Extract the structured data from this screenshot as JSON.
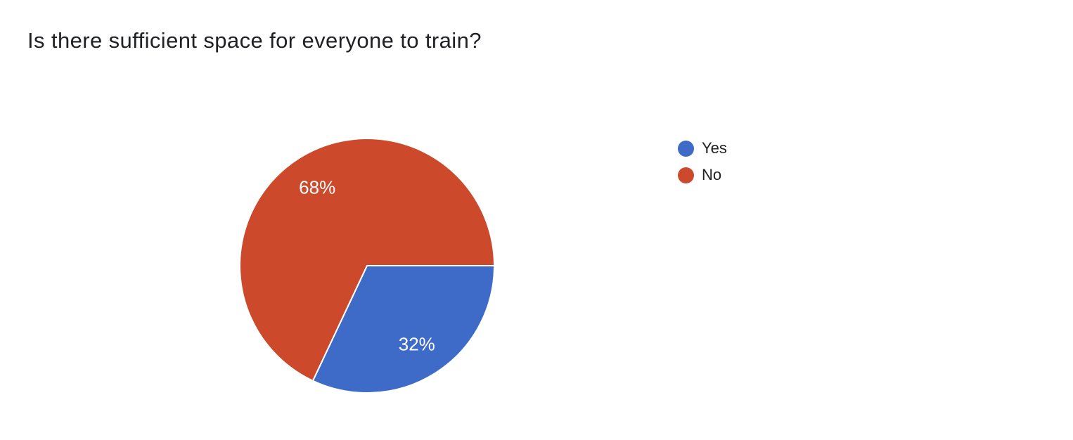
{
  "title": {
    "text": "Is there sufficient space for everyone to train?",
    "color": "#202124"
  },
  "chart_data": {
    "type": "pie",
    "title": "Is there sufficient space for everyone to train?",
    "categories": [
      "Yes",
      "No"
    ],
    "values": [
      32,
      68
    ],
    "unit": "%",
    "slice_labels": [
      "32%",
      "68%"
    ],
    "colors": [
      "#3d6bc7",
      "#cc4a2b"
    ],
    "slice_border_color": "#ffffff",
    "label_color": "#ffffff",
    "start_angle_deg_from_east": 0,
    "direction": "clockwise",
    "legend_position": "right",
    "grid": false
  },
  "legend": {
    "items": [
      {
        "label": "Yes",
        "color": "#3d6bc7"
      },
      {
        "label": "No",
        "color": "#cc4a2b"
      }
    ]
  }
}
